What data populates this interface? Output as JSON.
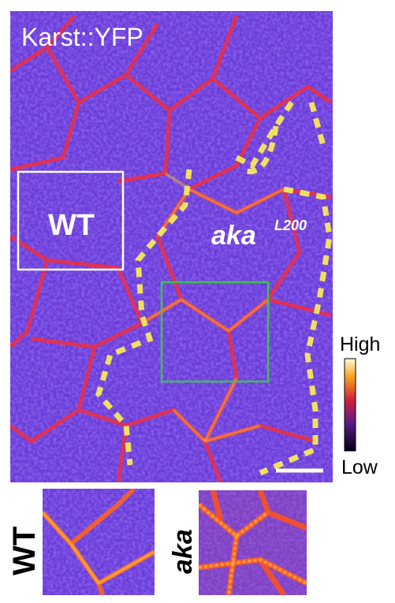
{
  "panel": {
    "marker": "Karst::YFP",
    "wt_label": "WT",
    "mutant_label": "aka",
    "allele": "L200",
    "scale_high": "High",
    "scale_low": "Low",
    "inset_wt_label": "WT",
    "inset_mutant_label": "aka"
  }
}
